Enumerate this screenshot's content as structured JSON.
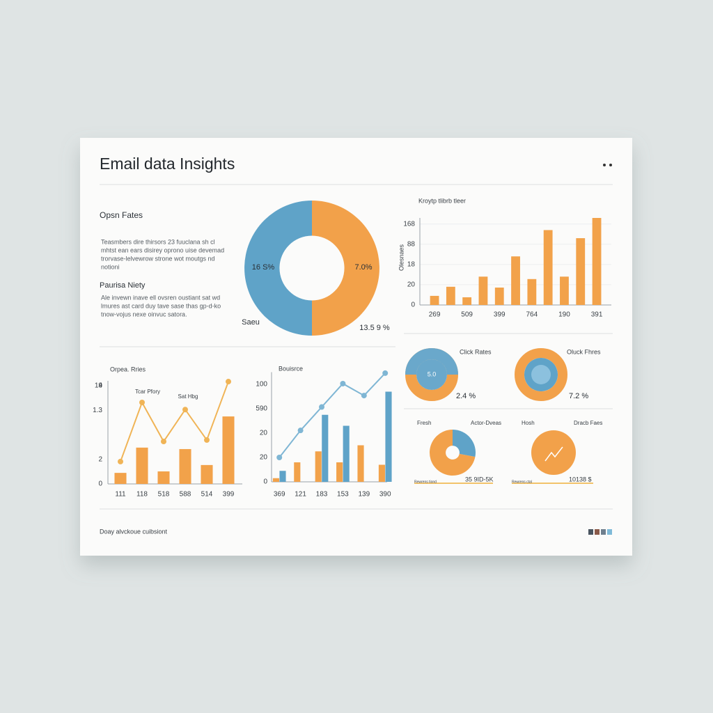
{
  "header": {
    "title": "Email data Insights"
  },
  "text_panel": {
    "heading1": "Opsn Fates",
    "paragraph1": [
      "Teasmbers dire thirsors 23 fuuclana sh cl",
      "mhtst ean ears disirey oprono uise devemad",
      "trorvase-lelvewrow strone wot moutgs nd",
      "notioni"
    ],
    "heading2": "Paurisa Niety",
    "paragraph2": [
      "Ale invewn inave ell ovsren oustiant sat wd",
      "lmures ast card duy tave sase thas gp-d-ko",
      "tnow-vojus nexe oinvuc satora."
    ]
  },
  "kpis": [
    {
      "title": "Click Rates",
      "center": "5.0",
      "value": "2.4 %"
    },
    {
      "title": "Oluck Fhres",
      "value": "7.2 %"
    }
  ],
  "mini": [
    {
      "title": "Fresh",
      "subtitle": "Actor-Dveas",
      "value": "35 9ID-5K",
      "caption": "Rewrens tiond"
    },
    {
      "title": "Hosh",
      "subtitle": "Dracb Faes",
      "value": "10138 $",
      "caption": "Rewrens ctal"
    }
  ],
  "footer": {
    "text": "Doay alvckoue cuibsiont"
  },
  "chart_data": [
    {
      "type": "pie",
      "values": [
        50,
        50
      ],
      "colors": [
        "#f2a14a",
        "#5fa3c8"
      ],
      "hole": 0.48,
      "annotations": [
        "16 S%",
        "7.0%",
        "13.5 9 %",
        "Saeu"
      ]
    },
    {
      "type": "bar",
      "title": "Kroytp tlibrb tleer",
      "y_label": "Olesnaes",
      "categories": [
        "269",
        null,
        "509",
        null,
        "399",
        null,
        "764",
        null,
        "190",
        null,
        "391"
      ],
      "series": [
        {
          "type": "bar",
          "color": "#f2a24a",
          "values": [
            0.45,
            0.9,
            0.38,
            1.4,
            0.86,
            2.4,
            1.28,
            3.7,
            1.4,
            3.3,
            4.3
          ]
        }
      ],
      "ylim": [
        0,
        4.3
      ],
      "yticks": [
        0,
        {
          "value": 1,
          "label": "20"
        },
        {
          "value": 2,
          "label": "18"
        },
        {
          "value": 3,
          "label": "88"
        },
        {
          "value": 4,
          "label": "168"
        }
      ],
      "grid": true
    },
    {
      "type": "combo",
      "title": "Orpea. Rries",
      "categories": [
        "111",
        "118",
        "518",
        "588",
        "514",
        "399"
      ],
      "series": [
        {
          "type": "bar",
          "color": "#f2a24a",
          "values": [
            0.45,
            1.48,
            0.51,
            1.42,
            0.77,
            2.75
          ]
        },
        {
          "type": "line",
          "color": "#f0b456",
          "values": [
            0.91,
            3.32,
            1.73,
            3.03,
            1.79,
            4.17
          ]
        }
      ],
      "ylim": [
        0,
        4.2
      ],
      "yticks": [
        0,
        {
          "value": 1,
          "label": "2"
        },
        4,
        {
          "value": 3,
          "label": "1.3"
        },
        {
          "value": 4,
          "label": "19"
        }
      ],
      "annotations": [
        "Tcar Pfory",
        "Sat Hbg"
      ],
      "grid": false
    },
    {
      "type": "combo",
      "title": "Bouisrce",
      "categories": [
        "369",
        "121",
        "183",
        "153",
        "139",
        "390"
      ],
      "series": [
        {
          "type": "bar",
          "color": "#f2a24a",
          "values": [
            0.15,
            0.8,
            1.25,
            0.8,
            1.5,
            0.7
          ]
        },
        {
          "type": "bar",
          "color": "#5fa3c8",
          "values": [
            0.45,
            null,
            2.75,
            2.3,
            null,
            3.7
          ]
        },
        {
          "type": "line",
          "color": "#7fb6d4",
          "values": [
            1.0,
            2.11,
            3.07,
            4.03,
            3.54,
            4.46
          ]
        }
      ],
      "ylim": [
        0,
        4.5
      ],
      "yticks": [
        0,
        {
          "value": 1,
          "label": "20"
        },
        {
          "value": 2,
          "label": "20"
        },
        {
          "value": 3,
          "label": "590"
        },
        {
          "value": 4,
          "label": "100"
        }
      ],
      "grid": false
    },
    {
      "type": "pie",
      "values": [
        28,
        72
      ],
      "colors": [
        "#5fa3c8",
        "#f2a14a"
      ],
      "hole": 0.3
    }
  ]
}
